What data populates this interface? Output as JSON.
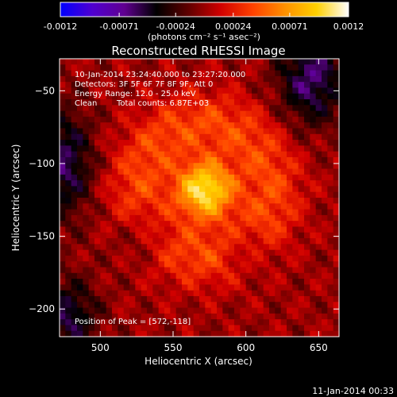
{
  "chart_data": {
    "type": "heatmap",
    "title": "Reconstructed RHESSI Image",
    "xlabel": "Heliocentric X (arcsec)",
    "ylabel": "Heliocentric Y (arcsec)",
    "xlim": [
      472,
      664
    ],
    "ylim": [
      -219,
      -28
    ],
    "xticks": [
      500,
      550,
      600,
      650
    ],
    "yticks": [
      -50,
      -100,
      -150,
      -200
    ],
    "colorbar": {
      "min": -0.0012,
      "max": 0.0012,
      "ticks": [
        {
          "value": -0.0012,
          "label": "-0.0012"
        },
        {
          "value": -0.00071,
          "label": "-0.00071"
        },
        {
          "value": -0.00024,
          "label": "-0.00024"
        },
        {
          "value": 0.00024,
          "label": "0.00024"
        },
        {
          "value": 0.00071,
          "label": "0.00071"
        },
        {
          "value": 0.0012,
          "label": "0.0012"
        }
      ],
      "units": "(photons cm⁻² s⁻¹ asec⁻²)",
      "colormap": [
        "#0000ff",
        "#5000d0",
        "#600090",
        "#000000",
        "#600000",
        "#d00000",
        "#ff4000",
        "#ff9000",
        "#ffd000",
        "#ffffff"
      ]
    },
    "annotations": {
      "time_range": "10-Jan-2014 23:24:40.000 to 23:27:20.000",
      "detectors": "Detectors: 3F 5F 6F 7F 8F 9F, Att 0",
      "energy_range": "Energy Range: 12.0 - 25.0 keV",
      "method": "Clean",
      "total_counts": "Total counts: 6.87E+03",
      "peak": "Position of Peak = [572,-118]"
    },
    "peak_position": [
      572,
      -118
    ],
    "timestamp": "11-Jan-2014 00:33"
  }
}
